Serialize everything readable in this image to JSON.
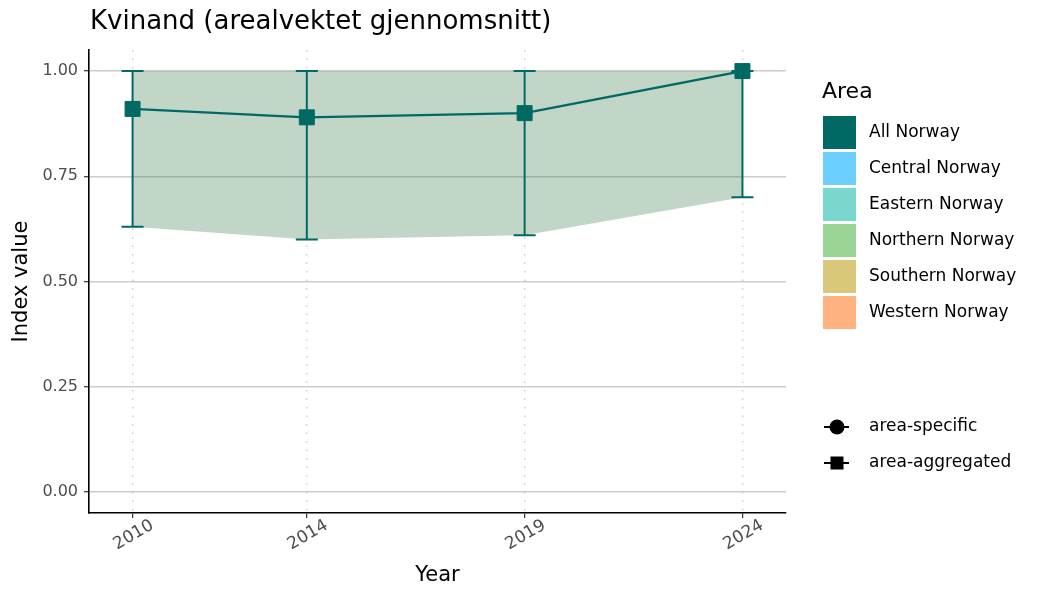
{
  "chart_data": {
    "type": "line",
    "title": "Kvinand (arealvektet gjennomsnitt)",
    "xlabel": "Year",
    "ylabel": "Index value",
    "legend_title": "Area",
    "x": [
      2010,
      2014,
      2019,
      2024
    ],
    "series": [
      {
        "name": "All Norway",
        "color": "#006964",
        "values": [
          0.91,
          0.89,
          0.9,
          1.0
        ],
        "errors": [
          [
            0.63,
            1.0
          ],
          [
            0.6,
            1.0
          ],
          [
            0.61,
            1.0
          ],
          [
            0.7,
            1.0
          ]
        ],
        "lower": [
          0.63,
          0.6,
          0.61,
          0.7
        ],
        "upper": [
          1.0,
          1.0,
          1.0,
          1.0
        ]
      },
      {
        "name": "Central Norway",
        "color": "#6dcfff",
        "values": [
          null,
          null,
          null,
          null
        ]
      },
      {
        "name": "Eastern Norway",
        "color": "#7ad7cd",
        "values": [
          null,
          null,
          null,
          null
        ]
      },
      {
        "name": "Northern Norway",
        "color": "#9bd595",
        "values": [
          null,
          null,
          null,
          null
        ]
      },
      {
        "name": "Southern Norway",
        "color": "#d9c87a",
        "values": [
          null,
          null,
          null,
          null
        ]
      },
      {
        "name": "Western Norway",
        "color": "#ffb17f",
        "values": [
          null,
          null,
          null,
          null
        ]
      },
      {
        "name": "area-specific",
        "color": "#000000",
        "marker": "circle",
        "values": [
          null,
          null,
          null,
          null
        ]
      },
      {
        "name": "area-aggregated",
        "color": "#000000",
        "marker": "square",
        "values": [
          null,
          null,
          null,
          null
        ]
      }
    ],
    "xlim": [
      2009,
      2025
    ],
    "xticks": [
      2010,
      2014,
      2019,
      2024
    ],
    "ylim": [
      -0.05,
      1.05
    ],
    "yticks": [
      {
        "value": 0,
        "label": "0.00"
      },
      0.25,
      {
        "value": 0.5,
        "label": "0.50"
      },
      0.75,
      {
        "value": 1,
        "label": "1.00"
      }
    ],
    "grid": true,
    "legend": "right",
    "marker": "square",
    "line_style": "solid"
  }
}
